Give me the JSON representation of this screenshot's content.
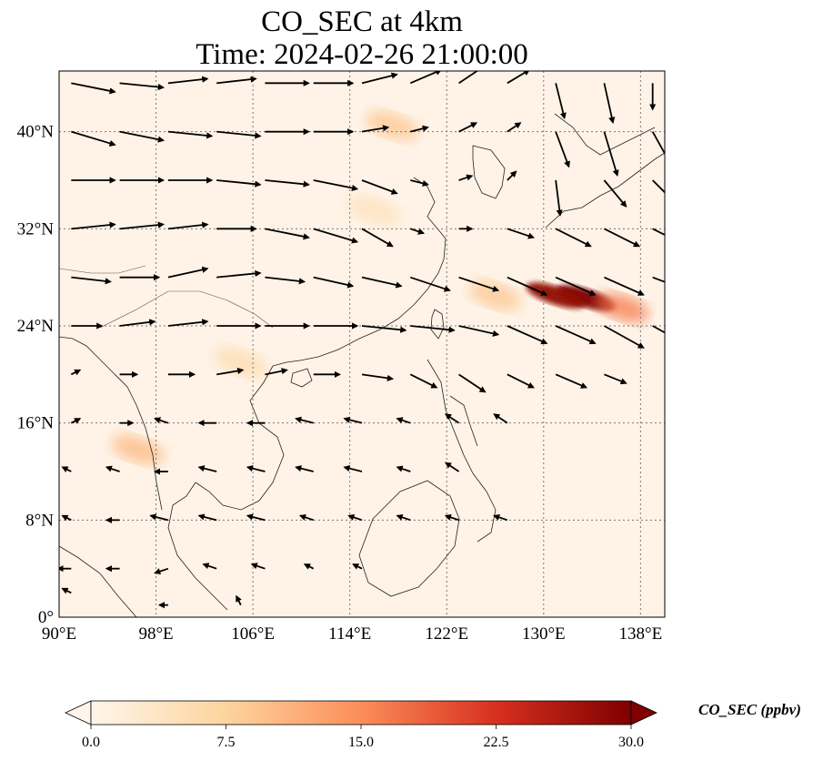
{
  "title_line1": "CO_SEC at 4km",
  "title_line2": "Time: 2024-02-26 21:00:00",
  "lon_ticks": [
    {
      "value": 90,
      "label": "90°E"
    },
    {
      "value": 98,
      "label": "98°E"
    },
    {
      "value": 106,
      "label": "106°E"
    },
    {
      "value": 114,
      "label": "114°E"
    },
    {
      "value": 122,
      "label": "122°E"
    },
    {
      "value": 130,
      "label": "130°E"
    },
    {
      "value": 138,
      "label": "138°E"
    }
  ],
  "lat_ticks": [
    {
      "value": 0,
      "label": "0°"
    },
    {
      "value": 8,
      "label": "8°N"
    },
    {
      "value": 16,
      "label": "16°N"
    },
    {
      "value": 24,
      "label": "24°N"
    },
    {
      "value": 32,
      "label": "32°N"
    },
    {
      "value": 40,
      "label": "40°N"
    }
  ],
  "extent": {
    "lon_min": 90,
    "lon_max": 140,
    "lat_min": 0,
    "lat_max": 45
  },
  "colorbar": {
    "label": "CO_SEC (ppbv)",
    "min": 0.0,
    "max": 30.0,
    "extend": "both",
    "ticks": [
      "0.0",
      "7.5",
      "15.0",
      "22.5",
      "30.0"
    ],
    "colors": [
      "#fff5eb",
      "#fdd49e",
      "#fc8d59",
      "#d7301f",
      "#7f0000"
    ]
  },
  "plumes": [
    {
      "lon": 133.5,
      "lat": 26.3,
      "level": 1.0
    },
    {
      "lon": 131.0,
      "lat": 26.5,
      "level": 0.95
    },
    {
      "lon": 136.5,
      "lat": 25.5,
      "level": 0.55
    },
    {
      "lon": 126.0,
      "lat": 26.5,
      "level": 0.3
    },
    {
      "lon": 117.5,
      "lat": 40.5,
      "level": 0.3
    },
    {
      "lon": 96.5,
      "lat": 13.8,
      "level": 0.35
    },
    {
      "lon": 105.0,
      "lat": 21.0,
      "level": 0.2
    },
    {
      "lon": 116.0,
      "lat": 33.5,
      "level": 0.15
    }
  ],
  "wind_vectors": [
    {
      "lon": 91,
      "lat": 44,
      "u": 1.0,
      "v": -0.2
    },
    {
      "lon": 95,
      "lat": 44,
      "u": 1.0,
      "v": -0.1
    },
    {
      "lon": 99,
      "lat": 44,
      "u": 0.9,
      "v": 0.1
    },
    {
      "lon": 103,
      "lat": 44,
      "u": 0.9,
      "v": 0.1
    },
    {
      "lon": 107,
      "lat": 44,
      "u": 1.0,
      "v": 0.0
    },
    {
      "lon": 111,
      "lat": 44,
      "u": 0.9,
      "v": 0.0
    },
    {
      "lon": 115,
      "lat": 44,
      "u": 0.8,
      "v": 0.2
    },
    {
      "lon": 119,
      "lat": 44,
      "u": 0.7,
      "v": 0.3
    },
    {
      "lon": 123,
      "lat": 44,
      "u": 0.6,
      "v": 0.4
    },
    {
      "lon": 127,
      "lat": 44,
      "u": 0.5,
      "v": 0.3
    },
    {
      "lon": 131,
      "lat": 44,
      "u": 0.2,
      "v": -0.8
    },
    {
      "lon": 135,
      "lat": 44,
      "u": 0.2,
      "v": -0.9
    },
    {
      "lon": 139,
      "lat": 44,
      "u": 0.0,
      "v": -0.6
    },
    {
      "lon": 91,
      "lat": 40,
      "u": 1.0,
      "v": -0.3
    },
    {
      "lon": 95,
      "lat": 40,
      "u": 1.0,
      "v": -0.2
    },
    {
      "lon": 99,
      "lat": 40,
      "u": 1.0,
      "v": -0.1
    },
    {
      "lon": 103,
      "lat": 40,
      "u": 1.0,
      "v": -0.1
    },
    {
      "lon": 107,
      "lat": 40,
      "u": 1.0,
      "v": 0.0
    },
    {
      "lon": 111,
      "lat": 40,
      "u": 0.9,
      "v": 0.0
    },
    {
      "lon": 115,
      "lat": 40,
      "u": 0.6,
      "v": 0.1
    },
    {
      "lon": 119,
      "lat": 40,
      "u": 0.4,
      "v": 0.1
    },
    {
      "lon": 123,
      "lat": 40,
      "u": 0.4,
      "v": 0.2
    },
    {
      "lon": 127,
      "lat": 40,
      "u": 0.3,
      "v": 0.2
    },
    {
      "lon": 131,
      "lat": 40,
      "u": 0.3,
      "v": -0.8
    },
    {
      "lon": 135,
      "lat": 40,
      "u": 0.3,
      "v": -1.0
    },
    {
      "lon": 139,
      "lat": 40,
      "u": 0.5,
      "v": -0.9
    },
    {
      "lon": 91,
      "lat": 36,
      "u": 1.0,
      "v": 0.0
    },
    {
      "lon": 95,
      "lat": 36,
      "u": 1.0,
      "v": 0.0
    },
    {
      "lon": 99,
      "lat": 36,
      "u": 1.0,
      "v": 0.0
    },
    {
      "lon": 103,
      "lat": 36,
      "u": 1.0,
      "v": -0.1
    },
    {
      "lon": 107,
      "lat": 36,
      "u": 1.0,
      "v": -0.1
    },
    {
      "lon": 111,
      "lat": 36,
      "u": 1.0,
      "v": -0.2
    },
    {
      "lon": 115,
      "lat": 36,
      "u": 0.8,
      "v": -0.3
    },
    {
      "lon": 119,
      "lat": 36,
      "u": 0.4,
      "v": -0.1
    },
    {
      "lon": 123,
      "lat": 36,
      "u": 0.3,
      "v": 0.1
    },
    {
      "lon": 127,
      "lat": 36,
      "u": 0.2,
      "v": 0.2
    },
    {
      "lon": 131,
      "lat": 36,
      "u": 0.1,
      "v": -0.8
    },
    {
      "lon": 135,
      "lat": 36,
      "u": 0.5,
      "v": -0.6
    },
    {
      "lon": 139,
      "lat": 36,
      "u": 0.5,
      "v": -0.5
    },
    {
      "lon": 91,
      "lat": 32,
      "u": 1.0,
      "v": 0.1
    },
    {
      "lon": 95,
      "lat": 32,
      "u": 1.0,
      "v": 0.1
    },
    {
      "lon": 99,
      "lat": 32,
      "u": 0.9,
      "v": 0.1
    },
    {
      "lon": 103,
      "lat": 32,
      "u": 0.9,
      "v": 0.0
    },
    {
      "lon": 107,
      "lat": 32,
      "u": 1.0,
      "v": -0.2
    },
    {
      "lon": 111,
      "lat": 32,
      "u": 1.0,
      "v": -0.3
    },
    {
      "lon": 115,
      "lat": 32,
      "u": 0.7,
      "v": -0.4
    },
    {
      "lon": 119,
      "lat": 32,
      "u": 0.3,
      "v": -0.1
    },
    {
      "lon": 123,
      "lat": 32,
      "u": 0.3,
      "v": 0.0
    },
    {
      "lon": 127,
      "lat": 32,
      "u": 0.6,
      "v": -0.2
    },
    {
      "lon": 131,
      "lat": 32,
      "u": 0.8,
      "v": -0.4
    },
    {
      "lon": 135,
      "lat": 32,
      "u": 0.8,
      "v": -0.4
    },
    {
      "lon": 139,
      "lat": 32,
      "u": 0.8,
      "v": -0.4
    },
    {
      "lon": 91,
      "lat": 28,
      "u": 0.9,
      "v": -0.1
    },
    {
      "lon": 95,
      "lat": 28,
      "u": 0.9,
      "v": 0.0
    },
    {
      "lon": 99,
      "lat": 28,
      "u": 0.9,
      "v": 0.2
    },
    {
      "lon": 103,
      "lat": 28,
      "u": 1.0,
      "v": 0.1
    },
    {
      "lon": 107,
      "lat": 28,
      "u": 0.9,
      "v": -0.1
    },
    {
      "lon": 111,
      "lat": 28,
      "u": 0.9,
      "v": -0.2
    },
    {
      "lon": 115,
      "lat": 28,
      "u": 0.9,
      "v": -0.2
    },
    {
      "lon": 119,
      "lat": 28,
      "u": 0.9,
      "v": -0.3
    },
    {
      "lon": 123,
      "lat": 28,
      "u": 0.9,
      "v": -0.3
    },
    {
      "lon": 127,
      "lat": 28,
      "u": 0.9,
      "v": -0.4
    },
    {
      "lon": 131,
      "lat": 28,
      "u": 0.9,
      "v": -0.4
    },
    {
      "lon": 135,
      "lat": 28,
      "u": 0.9,
      "v": -0.4
    },
    {
      "lon": 139,
      "lat": 28,
      "u": 0.8,
      "v": -0.3
    },
    {
      "lon": 91,
      "lat": 24,
      "u": 0.7,
      "v": 0.0
    },
    {
      "lon": 95,
      "lat": 24,
      "u": 0.8,
      "v": 0.1
    },
    {
      "lon": 99,
      "lat": 24,
      "u": 0.9,
      "v": 0.1
    },
    {
      "lon": 103,
      "lat": 24,
      "u": 1.0,
      "v": 0.0
    },
    {
      "lon": 107,
      "lat": 24,
      "u": 1.0,
      "v": 0.0
    },
    {
      "lon": 111,
      "lat": 24,
      "u": 1.0,
      "v": 0.0
    },
    {
      "lon": 115,
      "lat": 24,
      "u": 1.0,
      "v": -0.1
    },
    {
      "lon": 119,
      "lat": 24,
      "u": 1.0,
      "v": -0.1
    },
    {
      "lon": 123,
      "lat": 24,
      "u": 0.9,
      "v": -0.2
    },
    {
      "lon": 127,
      "lat": 24,
      "u": 0.9,
      "v": -0.4
    },
    {
      "lon": 131,
      "lat": 24,
      "u": 0.9,
      "v": -0.4
    },
    {
      "lon": 135,
      "lat": 24,
      "u": 0.9,
      "v": -0.5
    },
    {
      "lon": 139,
      "lat": 24,
      "u": 0.9,
      "v": -0.5
    },
    {
      "lon": 91,
      "lat": 20,
      "u": 0.2,
      "v": 0.1
    },
    {
      "lon": 95,
      "lat": 20,
      "u": 0.4,
      "v": 0.0
    },
    {
      "lon": 99,
      "lat": 20,
      "u": 0.6,
      "v": 0.0
    },
    {
      "lon": 103,
      "lat": 20,
      "u": 0.6,
      "v": 0.1
    },
    {
      "lon": 107,
      "lat": 20,
      "u": 0.5,
      "v": 0.1
    },
    {
      "lon": 111,
      "lat": 20,
      "u": 0.6,
      "v": 0.0
    },
    {
      "lon": 115,
      "lat": 20,
      "u": 0.7,
      "v": -0.1
    },
    {
      "lon": 119,
      "lat": 20,
      "u": 0.6,
      "v": -0.3
    },
    {
      "lon": 123,
      "lat": 20,
      "u": 0.6,
      "v": -0.4
    },
    {
      "lon": 127,
      "lat": 20,
      "u": 0.6,
      "v": -0.3
    },
    {
      "lon": 131,
      "lat": 20,
      "u": 0.7,
      "v": -0.3
    },
    {
      "lon": 135,
      "lat": 20,
      "u": 0.5,
      "v": -0.2
    },
    {
      "lon": 91,
      "lat": 16,
      "u": 0.2,
      "v": 0.1
    },
    {
      "lon": 95,
      "lat": 16,
      "u": 0.3,
      "v": 0.0
    },
    {
      "lon": 99,
      "lat": 16,
      "u": -0.3,
      "v": 0.1
    },
    {
      "lon": 103,
      "lat": 16,
      "u": -0.4,
      "v": 0.0
    },
    {
      "lon": 107,
      "lat": 16,
      "u": -0.4,
      "v": 0.0
    },
    {
      "lon": 111,
      "lat": 16,
      "u": -0.4,
      "v": 0.1
    },
    {
      "lon": 115,
      "lat": 16,
      "u": -0.4,
      "v": 0.1
    },
    {
      "lon": 119,
      "lat": 16,
      "u": -0.3,
      "v": 0.1
    },
    {
      "lon": 123,
      "lat": 16,
      "u": -0.3,
      "v": 0.2
    },
    {
      "lon": 127,
      "lat": 16,
      "u": -0.3,
      "v": 0.2
    },
    {
      "lon": 91,
      "lat": 12,
      "u": -0.2,
      "v": 0.1
    },
    {
      "lon": 95,
      "lat": 12,
      "u": -0.3,
      "v": 0.1
    },
    {
      "lon": 99,
      "lat": 12,
      "u": -0.3,
      "v": 0.0
    },
    {
      "lon": 103,
      "lat": 12,
      "u": -0.4,
      "v": 0.1
    },
    {
      "lon": 107,
      "lat": 12,
      "u": -0.4,
      "v": 0.1
    },
    {
      "lon": 111,
      "lat": 12,
      "u": -0.4,
      "v": 0.1
    },
    {
      "lon": 115,
      "lat": 12,
      "u": -0.4,
      "v": 0.1
    },
    {
      "lon": 119,
      "lat": 12,
      "u": -0.3,
      "v": 0.1
    },
    {
      "lon": 123,
      "lat": 12,
      "u": -0.3,
      "v": 0.2
    },
    {
      "lon": 91,
      "lat": 8,
      "u": -0.2,
      "v": 0.1
    },
    {
      "lon": 95,
      "lat": 8,
      "u": -0.3,
      "v": 0.0
    },
    {
      "lon": 99,
      "lat": 8,
      "u": -0.4,
      "v": 0.1
    },
    {
      "lon": 103,
      "lat": 8,
      "u": -0.4,
      "v": 0.1
    },
    {
      "lon": 107,
      "lat": 8,
      "u": -0.4,
      "v": 0.1
    },
    {
      "lon": 111,
      "lat": 8,
      "u": -0.3,
      "v": 0.1
    },
    {
      "lon": 115,
      "lat": 8,
      "u": -0.3,
      "v": 0.1
    },
    {
      "lon": 119,
      "lat": 8,
      "u": -0.3,
      "v": 0.1
    },
    {
      "lon": 123,
      "lat": 8,
      "u": -0.3,
      "v": 0.1
    },
    {
      "lon": 127,
      "lat": 8,
      "u": -0.3,
      "v": 0.1
    },
    {
      "lon": 91,
      "lat": 4,
      "u": -0.3,
      "v": 0.0
    },
    {
      "lon": 95,
      "lat": 4,
      "u": -0.3,
      "v": 0.0
    },
    {
      "lon": 99,
      "lat": 4,
      "u": -0.3,
      "v": -0.1
    },
    {
      "lon": 103,
      "lat": 4,
      "u": -0.3,
      "v": 0.1
    },
    {
      "lon": 107,
      "lat": 4,
      "u": -0.3,
      "v": 0.1
    },
    {
      "lon": 111,
      "lat": 4,
      "u": -0.2,
      "v": 0.1
    },
    {
      "lon": 115,
      "lat": 4,
      "u": -0.2,
      "v": 0.1
    },
    {
      "lon": 91,
      "lat": 2,
      "u": -0.2,
      "v": 0.1
    },
    {
      "lon": 99,
      "lat": 1,
      "u": -0.2,
      "v": 0.0
    },
    {
      "lon": 105,
      "lat": 1,
      "u": -0.1,
      "v": 0.2
    }
  ]
}
